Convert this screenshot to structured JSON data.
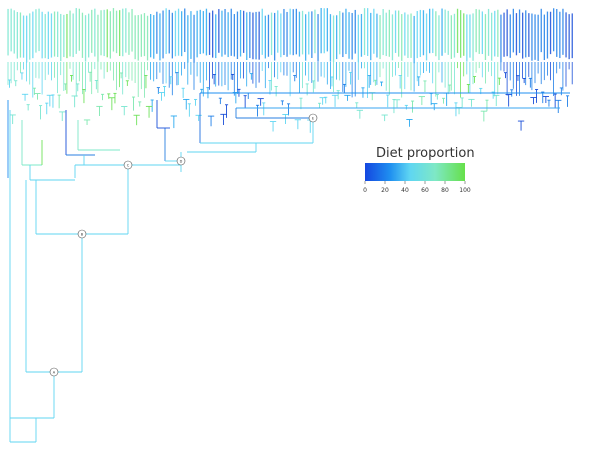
{
  "colors": {
    "scale": [
      "#1a4fd8",
      "#1f8ff0",
      "#63d8f0",
      "#7ee8c8",
      "#6fe35a"
    ],
    "node_fill": "#ffffff",
    "node_stroke": "#555555"
  },
  "legend": {
    "title": "Diet proportion",
    "ticks": [
      "0",
      "20",
      "40",
      "60",
      "80",
      "100"
    ]
  },
  "nodes": {
    "n1": "E",
    "n2": "D",
    "n3": "C",
    "n4": "B",
    "n5": "A"
  }
}
